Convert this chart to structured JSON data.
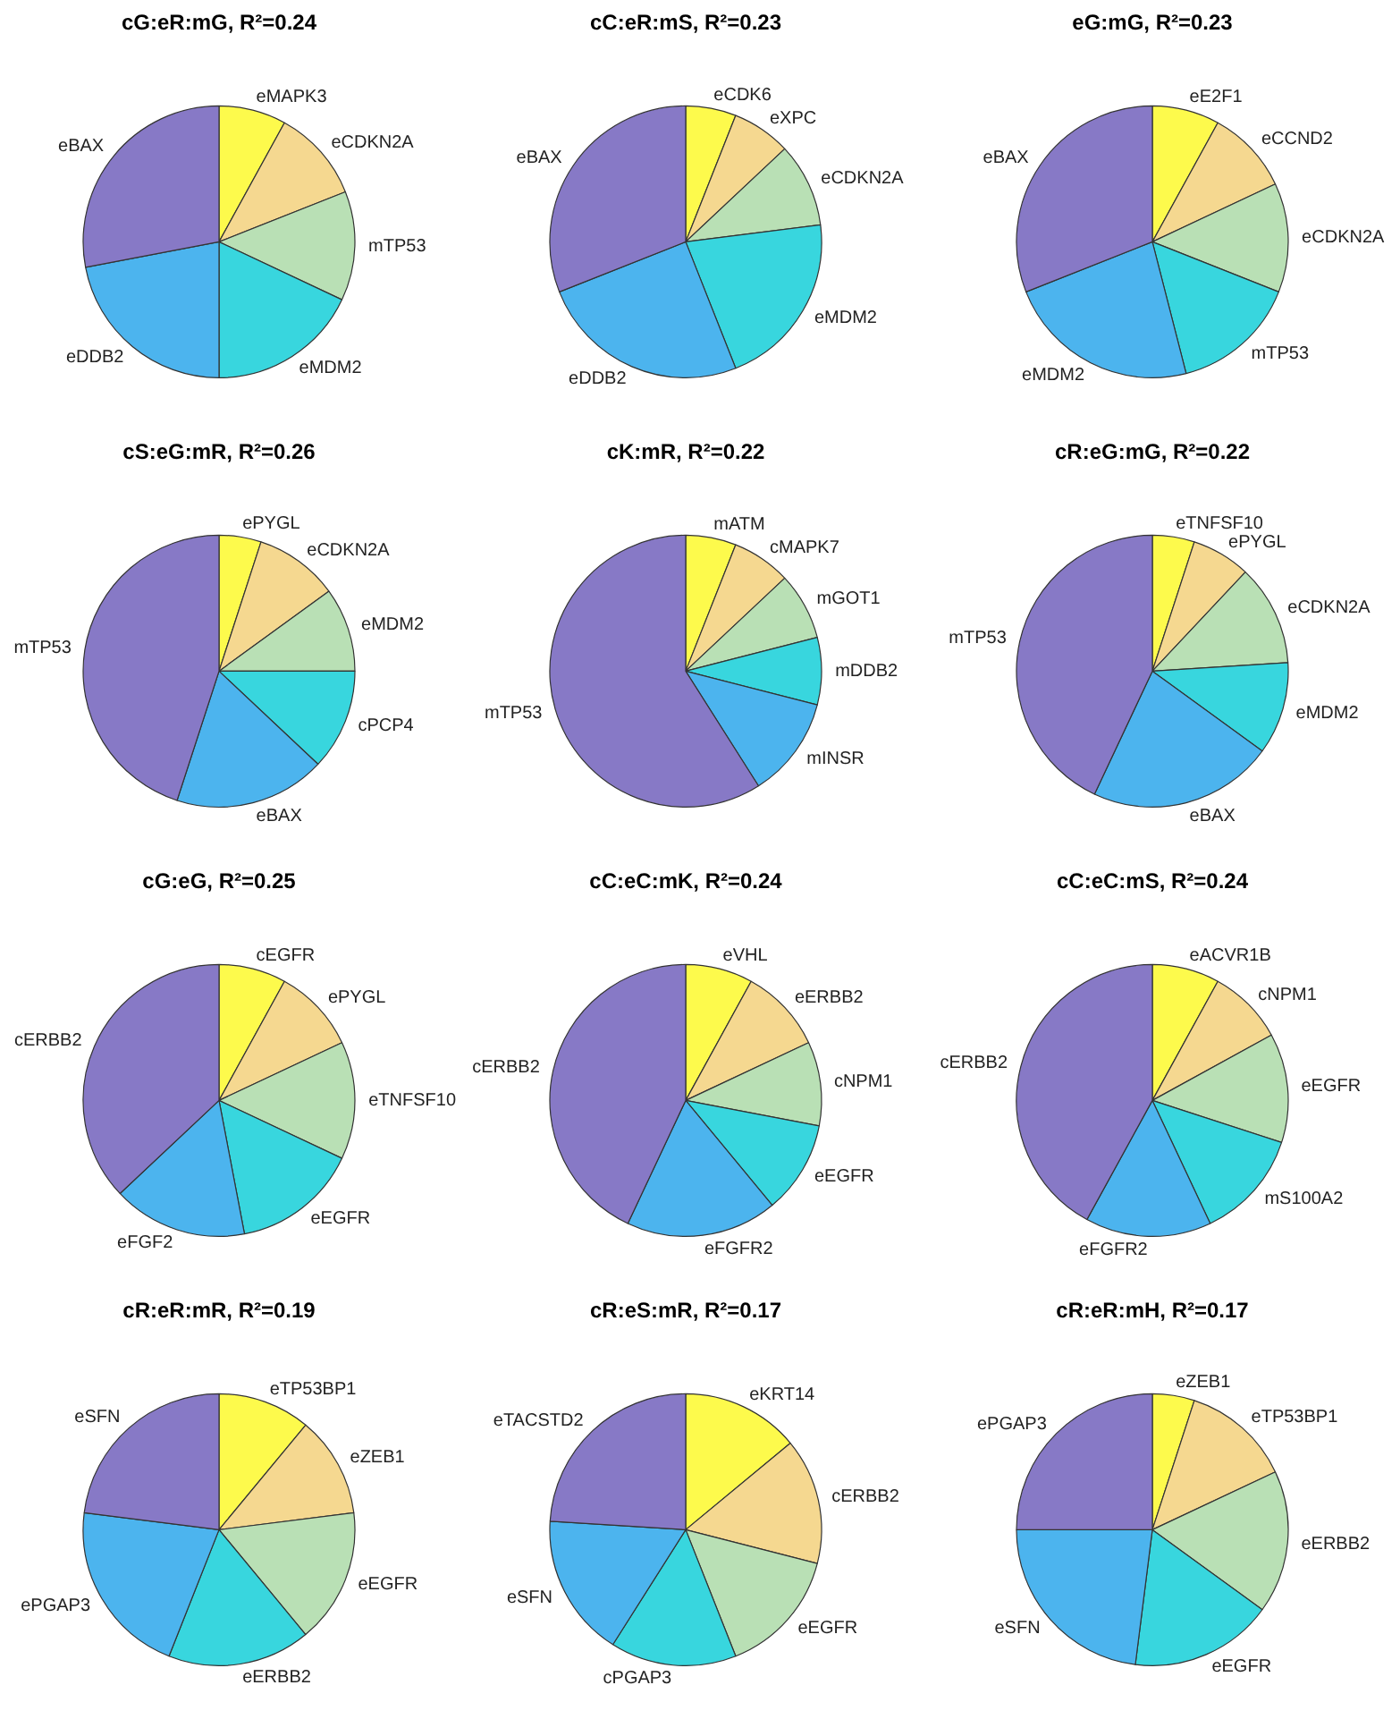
{
  "chart_data": [
    {
      "type": "pie",
      "title": "cG:eR:mG, R²=0.24",
      "categories": [
        "eMAPK3",
        "eCDKN2A",
        "mTP53",
        "eMDM2",
        "eDDB2",
        "eBAX"
      ],
      "values": [
        8,
        11,
        13,
        18,
        22,
        28
      ],
      "colors": [
        "#fdfa4c",
        "#f5d890",
        "#b9e0b5",
        "#38d6de",
        "#4cb4ee",
        "#8779c6"
      ]
    },
    {
      "type": "pie",
      "title": "cC:eR:mS, R²=0.23",
      "categories": [
        "eCDK6",
        "eXPC",
        "eCDKN2A",
        "eMDM2",
        "eDDB2",
        "eBAX"
      ],
      "values": [
        6,
        7,
        10,
        21,
        25,
        31
      ],
      "colors": [
        "#fdfa4c",
        "#f5d890",
        "#b9e0b5",
        "#38d6de",
        "#4cb4ee",
        "#8779c6"
      ]
    },
    {
      "type": "pie",
      "title": "eG:mG, R²=0.23",
      "categories": [
        "eE2F1",
        "eCCND2",
        "eCDKN2A",
        "mTP53",
        "eMDM2",
        "eBAX"
      ],
      "values": [
        8,
        10,
        13,
        15,
        23,
        31
      ],
      "colors": [
        "#fdfa4c",
        "#f5d890",
        "#b9e0b5",
        "#38d6de",
        "#4cb4ee",
        "#8779c6"
      ]
    },
    {
      "type": "pie",
      "title": "cS:eG:mR, R²=0.26",
      "categories": [
        "ePYGL",
        "eCDKN2A",
        "eMDM2",
        "cPCP4",
        "eBAX",
        "mTP53"
      ],
      "values": [
        5,
        10,
        10,
        12,
        18,
        45
      ],
      "colors": [
        "#fdfa4c",
        "#f5d890",
        "#b9e0b5",
        "#38d6de",
        "#4cb4ee",
        "#8779c6"
      ]
    },
    {
      "type": "pie",
      "title": "cK:mR, R²=0.22",
      "categories": [
        "mATM",
        "cMAPK7",
        "mGOT1",
        "mDDB2",
        "mINSR",
        "mTP53"
      ],
      "values": [
        6,
        7,
        8,
        8,
        12,
        59
      ],
      "colors": [
        "#fdfa4c",
        "#f5d890",
        "#b9e0b5",
        "#38d6de",
        "#4cb4ee",
        "#8779c6"
      ]
    },
    {
      "type": "pie",
      "title": "cR:eG:mG, R²=0.22",
      "categories": [
        "eTNFSF10",
        "ePYGL",
        "eCDKN2A",
        "eMDM2",
        "eBAX",
        "mTP53"
      ],
      "values": [
        5,
        7,
        12,
        11,
        22,
        43
      ],
      "colors": [
        "#fdfa4c",
        "#f5d890",
        "#b9e0b5",
        "#38d6de",
        "#4cb4ee",
        "#8779c6"
      ]
    },
    {
      "type": "pie",
      "title": "cG:eG, R²=0.25",
      "categories": [
        "cEGFR",
        "ePYGL",
        "eTNFSF10",
        "eEGFR",
        "eFGF2",
        "cERBB2"
      ],
      "values": [
        8,
        10,
        14,
        15,
        16,
        37
      ],
      "colors": [
        "#fdfa4c",
        "#f5d890",
        "#b9e0b5",
        "#38d6de",
        "#4cb4ee",
        "#8779c6"
      ]
    },
    {
      "type": "pie",
      "title": "cC:eC:mK, R²=0.24",
      "categories": [
        "eVHL",
        "eERBB2",
        "cNPM1",
        "eEGFR",
        "eFGFR2",
        "cERBB2"
      ],
      "values": [
        8,
        10,
        10,
        11,
        18,
        43
      ],
      "colors": [
        "#fdfa4c",
        "#f5d890",
        "#b9e0b5",
        "#38d6de",
        "#4cb4ee",
        "#8779c6"
      ]
    },
    {
      "type": "pie",
      "title": "cC:eC:mS, R²=0.24",
      "categories": [
        "eACVR1B",
        "cNPM1",
        "eEGFR",
        "mS100A2",
        "eFGFR2",
        "cERBB2"
      ],
      "values": [
        8,
        9,
        13,
        13,
        15,
        42
      ],
      "colors": [
        "#fdfa4c",
        "#f5d890",
        "#b9e0b5",
        "#38d6de",
        "#4cb4ee",
        "#8779c6"
      ]
    },
    {
      "type": "pie",
      "title": "cR:eR:mR, R²=0.19",
      "categories": [
        "eTP53BP1",
        "eZEB1",
        "eEGFR",
        "eERBB2",
        "ePGAP3",
        "eSFN"
      ],
      "values": [
        11,
        12,
        16,
        17,
        21,
        23
      ],
      "colors": [
        "#fdfa4c",
        "#f5d890",
        "#b9e0b5",
        "#38d6de",
        "#4cb4ee",
        "#8779c6"
      ]
    },
    {
      "type": "pie",
      "title": "cR:eS:mR, R²=0.17",
      "categories": [
        "eKRT14",
        "cERBB2",
        "eEGFR",
        "cPGAP3",
        "eSFN",
        "eTACSTD2"
      ],
      "values": [
        14,
        15,
        15,
        15,
        17,
        24
      ],
      "colors": [
        "#fdfa4c",
        "#f5d890",
        "#b9e0b5",
        "#38d6de",
        "#4cb4ee",
        "#8779c6"
      ]
    },
    {
      "type": "pie",
      "title": "cR:eR:mH, R²=0.17",
      "categories": [
        "eZEB1",
        "eTP53BP1",
        "eERBB2",
        "eEGFR",
        "eSFN",
        "ePGAP3"
      ],
      "values": [
        5,
        13,
        17,
        17,
        23,
        25
      ],
      "colors": [
        "#fdfa4c",
        "#f5d890",
        "#b9e0b5",
        "#38d6de",
        "#4cb4ee",
        "#8779c6"
      ]
    }
  ]
}
